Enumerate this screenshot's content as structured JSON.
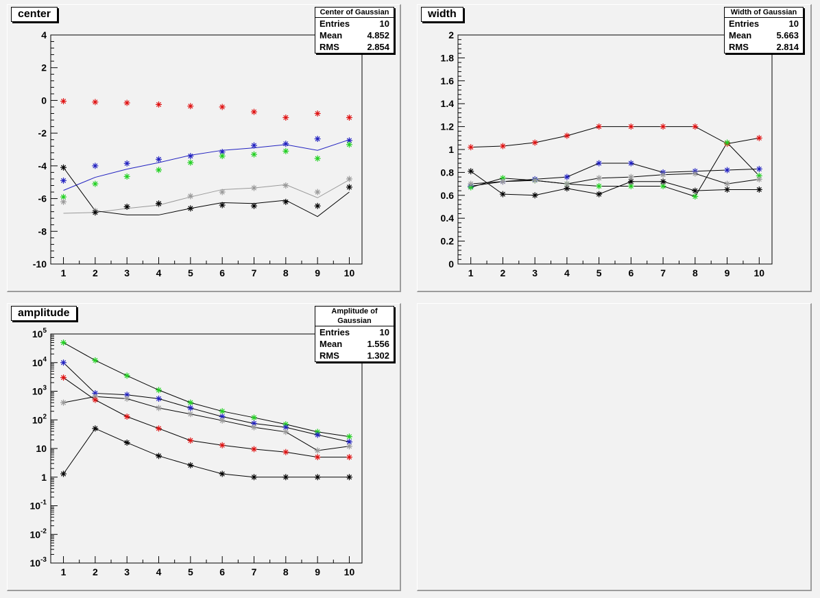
{
  "pads": [
    {
      "title": "center",
      "stats": {
        "name": "Center of Gaussian",
        "rows": [
          [
            "Entries",
            "10"
          ],
          [
            "Mean",
            "4.852"
          ],
          [
            "RMS",
            "2.854"
          ]
        ]
      }
    },
    {
      "title": "width",
      "stats": {
        "name": "Width of Gaussian",
        "rows": [
          [
            "Entries",
            "10"
          ],
          [
            "Mean",
            "5.663"
          ],
          [
            "RMS",
            "2.814"
          ]
        ]
      }
    },
    {
      "title": "amplitude",
      "stats": {
        "name": "Amplitude of Gaussian",
        "rows": [
          [
            "Entries",
            "10"
          ],
          [
            "Mean",
            "1.556"
          ],
          [
            "RMS",
            "1.302"
          ]
        ]
      }
    }
  ],
  "chart_data": [
    {
      "type": "scatter",
      "title": "center",
      "x": [
        1,
        2,
        3,
        4,
        5,
        6,
        7,
        8,
        9,
        10
      ],
      "xlim": [
        0.6,
        10.4
      ],
      "ylim": [
        -10,
        4
      ],
      "yticks": [
        -10,
        -8,
        -6,
        -4,
        -2,
        0,
        2,
        4
      ],
      "ytick_labels": [
        "-10",
        "-8",
        "-6",
        "-4",
        "-2",
        "0",
        "2",
        "4"
      ],
      "grid": false,
      "series": [
        {
          "color": "#e01010",
          "markers": [
            -0.05,
            -0.1,
            -0.15,
            -0.25,
            -0.35,
            -0.4,
            -0.7,
            -1.05,
            -0.8,
            -1.05
          ],
          "line": null
        },
        {
          "color": "#2020c0",
          "markers": [
            -4.9,
            -4.0,
            -3.85,
            -3.6,
            -3.4,
            -3.15,
            -2.75,
            -2.65,
            -2.35,
            -2.45
          ],
          "line": [
            -5.5,
            -4.7,
            -4.2,
            -3.8,
            -3.35,
            -3.05,
            -2.9,
            -2.7,
            -3.05,
            -2.4
          ]
        },
        {
          "color": "#20d020",
          "markers": [
            -5.9,
            -5.1,
            -4.65,
            -4.25,
            -3.8,
            -3.4,
            -3.3,
            -3.1,
            -3.55,
            -2.7
          ],
          "line": null
        },
        {
          "color": "#999999",
          "markers": [
            -6.2,
            -6.75,
            -6.5,
            -6.35,
            -5.85,
            -5.6,
            -5.35,
            -5.2,
            -5.6,
            -4.8
          ],
          "line": [
            -6.9,
            -6.85,
            -6.6,
            -6.4,
            -5.9,
            -5.45,
            -5.35,
            -5.15,
            -5.95,
            -4.85
          ]
        },
        {
          "color": "#000000",
          "markers": [
            -4.1,
            -6.85,
            -6.5,
            -6.3,
            -6.6,
            -6.4,
            -6.45,
            -6.2,
            -6.45,
            -5.3
          ],
          "line": [
            -4.1,
            -6.75,
            -7.0,
            -7.0,
            -6.6,
            -6.25,
            -6.3,
            -6.1,
            -7.1,
            -5.6
          ]
        }
      ]
    },
    {
      "type": "line",
      "title": "width",
      "x": [
        1,
        2,
        3,
        4,
        5,
        6,
        7,
        8,
        9,
        10
      ],
      "xlim": [
        0.6,
        10.4
      ],
      "ylim": [
        0,
        2
      ],
      "yticks": [
        0,
        0.2,
        0.4,
        0.6,
        0.8,
        1,
        1.2,
        1.4,
        1.6,
        1.8,
        2
      ],
      "ytick_labels": [
        "0",
        "0.2",
        "0.4",
        "0.6",
        "0.8",
        "1",
        "1.2",
        "1.4",
        "1.6",
        "1.8",
        "2"
      ],
      "grid": false,
      "series": [
        {
          "color": "#e01010",
          "markers": [
            1.02,
            1.03,
            1.06,
            1.12,
            1.2,
            1.2,
            1.2,
            1.2,
            1.05,
            1.1
          ],
          "line": [
            1.02,
            1.03,
            1.06,
            1.12,
            1.2,
            1.2,
            1.2,
            1.2,
            1.05,
            1.1
          ]
        },
        {
          "color": "#2020c0",
          "markers": [
            0.68,
            0.72,
            0.74,
            0.76,
            0.88,
            0.88,
            0.8,
            0.81,
            0.82,
            0.83
          ],
          "line": [
            0.68,
            0.72,
            0.74,
            0.76,
            0.88,
            0.88,
            0.8,
            0.81,
            0.82,
            0.83
          ]
        },
        {
          "color": "#20d020",
          "markers": [
            0.67,
            0.75,
            0.73,
            0.7,
            0.68,
            0.68,
            0.68,
            0.59,
            1.06,
            0.77
          ],
          "line": [
            0.67,
            0.75,
            0.73,
            0.7,
            0.68,
            0.68,
            0.68,
            0.59,
            1.06,
            0.77
          ]
        },
        {
          "color": "#999999",
          "markers": [
            0.7,
            0.72,
            0.73,
            0.7,
            0.75,
            0.76,
            0.78,
            0.79,
            0.7,
            0.74
          ],
          "line": [
            0.7,
            0.72,
            0.73,
            0.7,
            0.75,
            0.76,
            0.78,
            0.79,
            0.7,
            0.74
          ]
        },
        {
          "color": "#000000",
          "markers": [
            0.81,
            0.61,
            0.6,
            0.66,
            0.61,
            0.72,
            0.72,
            0.64,
            0.65,
            0.65
          ],
          "line": [
            0.81,
            0.61,
            0.6,
            0.66,
            0.61,
            0.72,
            0.72,
            0.64,
            0.65,
            0.65
          ]
        }
      ]
    },
    {
      "type": "line",
      "title": "amplitude",
      "x": [
        1,
        2,
        3,
        4,
        5,
        6,
        7,
        8,
        9,
        10
      ],
      "xlim": [
        0.6,
        10.4
      ],
      "ylim": [
        0.001,
        100000
      ],
      "log_y": true,
      "yticks": [
        0.001,
        0.01,
        0.1,
        1,
        10,
        100,
        1000,
        10000,
        100000
      ],
      "ytick_labels": [
        [
          "10",
          "-3"
        ],
        [
          "10",
          "-2"
        ],
        [
          "10",
          "-1"
        ],
        [
          "1",
          ""
        ],
        [
          "10",
          ""
        ],
        [
          "10",
          "2"
        ],
        [
          "10",
          "3"
        ],
        [
          "10",
          "4"
        ],
        [
          "10",
          "5"
        ]
      ],
      "grid": false,
      "series": [
        {
          "color": "#20d020",
          "markers": [
            50000,
            12000,
            3500,
            1100,
            400,
            200,
            120,
            70,
            38,
            26
          ],
          "line": [
            50000,
            12000,
            3500,
            1100,
            400,
            200,
            120,
            70,
            38,
            26
          ]
        },
        {
          "color": "#2020c0",
          "markers": [
            10000,
            850,
            750,
            550,
            260,
            130,
            75,
            55,
            30,
            17
          ],
          "line": [
            10000,
            850,
            750,
            550,
            260,
            130,
            75,
            55,
            30,
            17
          ]
        },
        {
          "color": "#999999",
          "markers": [
            400,
            650,
            550,
            260,
            160,
            95,
            55,
            38,
            8.5,
            12
          ],
          "line": [
            400,
            650,
            550,
            260,
            160,
            95,
            55,
            38,
            8.5,
            12
          ]
        },
        {
          "color": "#e01010",
          "markers": [
            3000,
            500,
            130,
            50,
            19,
            13,
            9.5,
            7.5,
            5,
            5
          ],
          "line": [
            3000,
            500,
            130,
            50,
            19,
            13,
            9.5,
            7.5,
            5,
            5
          ]
        },
        {
          "color": "#000000",
          "markers": [
            1.3,
            50,
            16,
            5.5,
            2.6,
            1.3,
            1,
            1,
            1,
            1
          ],
          "line": [
            1.3,
            50,
            16,
            5.5,
            2.6,
            1.3,
            1,
            1,
            1,
            1
          ]
        }
      ]
    }
  ]
}
